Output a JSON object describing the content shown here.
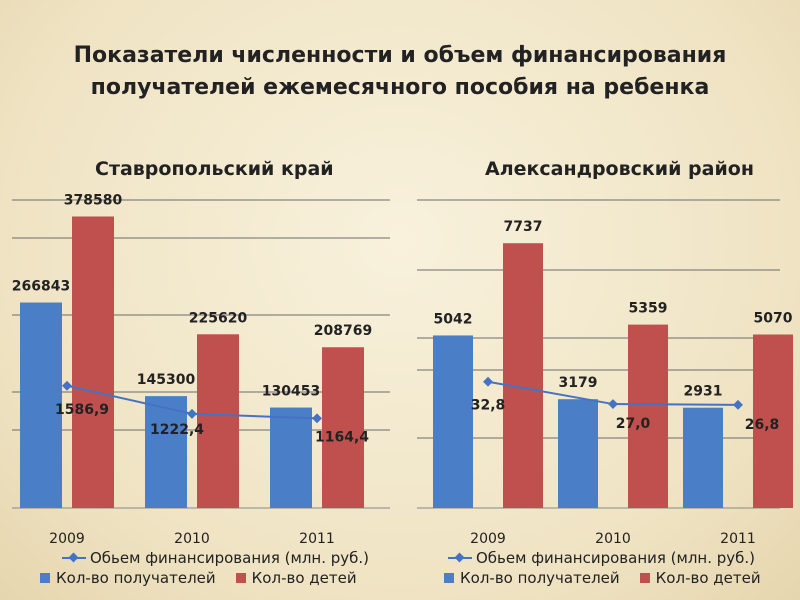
{
  "slide": {
    "title_line1": "Показатели численности и объем финансирования",
    "title_line2": "получателей ежемесячного пособия на ребенка"
  },
  "colors": {
    "blue": "#4a7ec6",
    "red": "#c0504d",
    "line": "#4472c4"
  },
  "chart_data": [
    {
      "type": "bar",
      "title": "Ставропольский край",
      "categories": [
        "2009",
        "2010",
        "2011"
      ],
      "series": [
        {
          "name": "Кол-во получателей",
          "kind": "bar",
          "values": [
            266843,
            145300,
            130453
          ],
          "labels": [
            "266843",
            "145300",
            "130453"
          ]
        },
        {
          "name": "Кол-во детей",
          "kind": "bar",
          "values": [
            378580,
            225620,
            208769
          ],
          "labels": [
            "378580",
            "225620",
            "208769"
          ]
        },
        {
          "name": "Обьем финансирования (млн. руб.)",
          "kind": "line",
          "values": [
            1586.9,
            1222.4,
            1164.4
          ],
          "labels": [
            "1586,9",
            "1222,4",
            "1164,4"
          ]
        }
      ],
      "ylim": [
        0,
        400000
      ],
      "line_ylim": [
        0,
        4000
      ],
      "grid": true,
      "legend": "bottom"
    },
    {
      "type": "bar",
      "title": "Александровский район",
      "categories": [
        "2009",
        "2010",
        "2011"
      ],
      "series": [
        {
          "name": "Кол-во получателей",
          "kind": "bar",
          "values": [
            5042,
            3179,
            2931
          ],
          "labels": [
            "5042",
            "3179",
            "2931"
          ]
        },
        {
          "name": "Кол-во детей",
          "kind": "bar",
          "values": [
            7737,
            5359,
            5070
          ],
          "labels": [
            "7737",
            "5359",
            "5070"
          ]
        },
        {
          "name": "Обьем финансирования (млн. руб.)",
          "kind": "line",
          "values": [
            32.8,
            27.0,
            26.8
          ],
          "labels": [
            "32,8",
            "27,0",
            "26,8"
          ]
        }
      ],
      "ylim": [
        0,
        9000
      ],
      "line_ylim": [
        0,
        80
      ],
      "grid": true,
      "legend": "bottom"
    }
  ]
}
